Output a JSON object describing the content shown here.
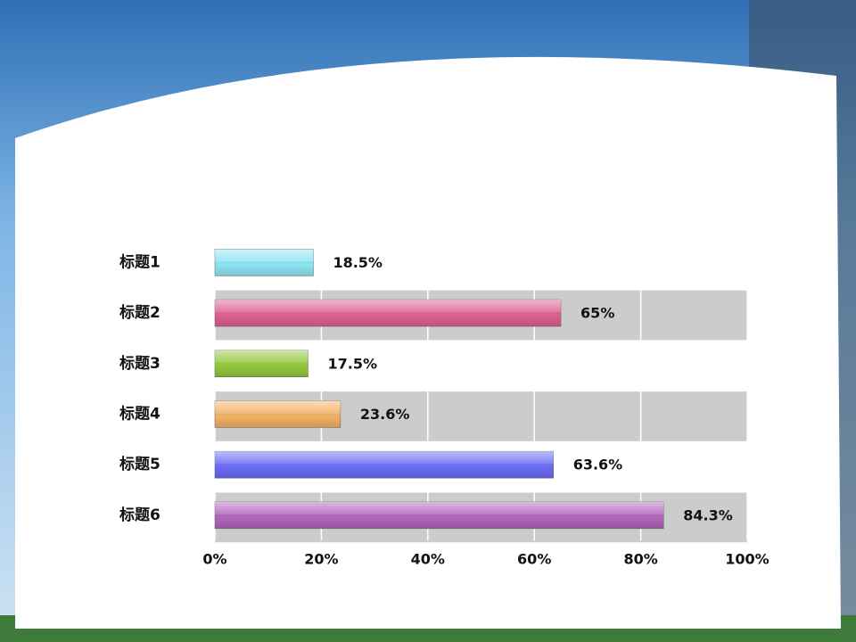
{
  "chart_data": {
    "type": "bar",
    "orientation": "horizontal",
    "categories": [
      "标题1",
      "标题2",
      "标题3",
      "标题4",
      "标题5",
      "标题6"
    ],
    "values": [
      18.5,
      65,
      17.5,
      23.6,
      63.6,
      84.3
    ],
    "value_labels": [
      "18.5%",
      "65%",
      "17.5%",
      "23.6%",
      "63.6%",
      "84.3%"
    ],
    "colors": [
      "#8ee6f4",
      "#df6190",
      "#93c83c",
      "#f4b266",
      "#6c6cf6",
      "#b266bc"
    ],
    "xlim": [
      0,
      100
    ],
    "xticks": [
      {
        "value": 0,
        "label": "0%"
      },
      {
        "value": 20,
        "label": "20%"
      },
      {
        "value": 40,
        "label": "40%"
      },
      {
        "value": 60,
        "label": "60%"
      },
      {
        "value": 80,
        "label": "80%"
      },
      {
        "value": 100,
        "label": "100%"
      }
    ],
    "grid": true
  }
}
